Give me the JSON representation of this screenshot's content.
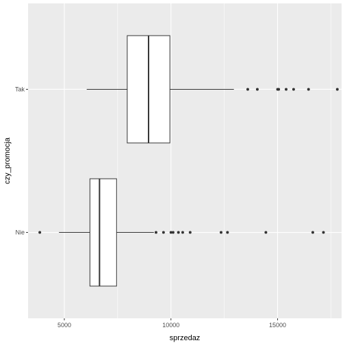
{
  "chart_data": {
    "type": "boxplot",
    "orientation": "horizontal",
    "xlabel": "sprzedaz",
    "ylabel": "czy_promocja",
    "xlim": [
      3300,
      18000
    ],
    "x_ticks": [
      5000,
      10000,
      15000
    ],
    "x_tick_labels": [
      "5000",
      "10000",
      "15000"
    ],
    "categories": [
      "Nie",
      "Tak"
    ],
    "grid": true,
    "panel_background": "#ebebeb",
    "grid_color": "#ffffff",
    "box_fill": "#ffffff",
    "line_color": "#333333",
    "point_color": "#333333",
    "groups": [
      {
        "category": "Nie",
        "whisker_low": 4750,
        "q1": 6200,
        "median": 6650,
        "q3": 7450,
        "whisker_high": 9200,
        "outliers": [
          3850,
          9300,
          9650,
          10000,
          10100,
          10350,
          10550,
          10900,
          12350,
          12650,
          14450,
          16650,
          17150
        ]
      },
      {
        "category": "Tak",
        "whisker_low": 6050,
        "q1": 7950,
        "median": 8950,
        "q3": 9950,
        "whisker_high": 12950,
        "outliers": [
          13600,
          14050,
          15000,
          15050,
          15400,
          15750,
          16450,
          17800
        ]
      }
    ]
  }
}
